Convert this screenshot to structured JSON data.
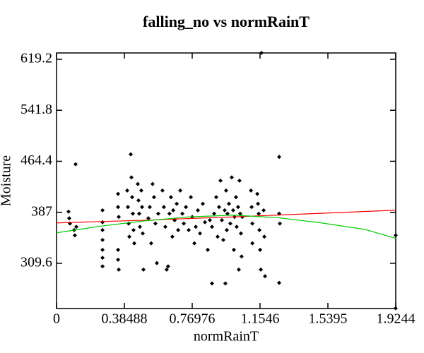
{
  "chart_data": {
    "type": "scatter",
    "title": "falling_no vs normRainT",
    "x_label": "normRainT",
    "y_label": "Moisture",
    "xlim": [
      0,
      1.9244
    ],
    "ylim": [
      241,
      628.8
    ],
    "xticks": [
      0,
      0.38488,
      0.76976,
      1.1546,
      1.5395,
      1.9244
    ],
    "yticks": [
      309.6,
      387,
      464.4,
      541.8,
      619.2
    ],
    "series": [
      {
        "type": "scatter",
        "color": "#000000",
        "marker": "diamond",
        "x": [
          0.068,
          0.072,
          0.076,
          0.104,
          0.108,
          0.112,
          0.1,
          0.261,
          0.261,
          0.261,
          0.261,
          0.261,
          0.261,
          0.261,
          0.349,
          0.349,
          0.349,
          0.349,
          0.353,
          0.353,
          0.401,
          0.405,
          0.409,
          0.413,
          0.421,
          0.425,
          0.429,
          0.433,
          0.437,
          0.441,
          0.461,
          0.465,
          0.469,
          0.473,
          0.481,
          0.485,
          0.489,
          0.493,
          0.521,
          0.529,
          0.537,
          0.545,
          0.553,
          0.561,
          0.569,
          0.577,
          0.601,
          0.609,
          0.617,
          0.625,
          0.633,
          0.641,
          0.649,
          0.657,
          0.662,
          0.67,
          0.682,
          0.69,
          0.702,
          0.714,
          0.722,
          0.734,
          0.75,
          0.762,
          0.77,
          0.782,
          0.79,
          0.802,
          0.814,
          0.83,
          0.842,
          0.858,
          0.87,
          0.882,
          0.882,
          0.894,
          0.906,
          0.914,
          0.922,
          0.93,
          0.938,
          0.946,
          0.954,
          0.958,
          0.962,
          0.966,
          0.97,
          0.978,
          0.986,
          0.994,
          1.002,
          1.006,
          1.01,
          1.018,
          1.022,
          1.03,
          1.034,
          1.038,
          1.042,
          1.046,
          1.05,
          1.054,
          1.103,
          1.107,
          1.111,
          1.111,
          1.139,
          1.143,
          1.147,
          1.151,
          1.155,
          1.159,
          1.163,
          1.175,
          1.179,
          1.183,
          1.263,
          1.263,
          1.267,
          1.263,
          1.924,
          1.924
        ],
        "values": [
          388,
          378,
          370,
          352,
          460,
          365,
          360,
          372,
          360,
          345,
          330,
          318,
          305,
          390,
          415,
          395,
          330,
          315,
          300,
          380,
          420,
          395,
          370,
          350,
          475,
          440,
          410,
          385,
          360,
          340,
          430,
          405,
          385,
          365,
          420,
          395,
          355,
          300,
          378,
          395,
          340,
          430,
          410,
          370,
          310,
          385,
          420,
          395,
          365,
          300,
          305,
          385,
          410,
          350,
          390,
          375,
          400,
          360,
          420,
          385,
          370,
          395,
          360,
          410,
          380,
          340,
          365,
          390,
          355,
          400,
          372,
          330,
          375,
          365,
          279,
          385,
          410,
          350,
          395,
          435,
          375,
          345,
          390,
          279,
          420,
          360,
          385,
          400,
          370,
          440,
          390,
          330,
          380,
          410,
          365,
          395,
          300,
          435,
          385,
          355,
          320,
          380,
          420,
          395,
          370,
          340,
          415,
          400,
          385,
          360,
          330,
          300,
          629,
          390,
          350,
          290,
          471,
          385,
          370,
          280,
          352,
          241.4
        ]
      },
      {
        "type": "line",
        "color": "#ff0000",
        "x": [
          0,
          0.5,
          1.0,
          1.5,
          1.924
        ],
        "values": [
          370.9,
          375,
          380,
          385.5,
          390.2
        ]
      },
      {
        "type": "line",
        "color": "#00cc00",
        "x": [
          0,
          0.25,
          0.5,
          0.75,
          1.0,
          1.25,
          1.5,
          1.75,
          1.924
        ],
        "values": [
          355.9,
          366,
          374,
          380,
          382.7,
          379,
          371,
          361,
          347.4
        ]
      }
    ]
  }
}
